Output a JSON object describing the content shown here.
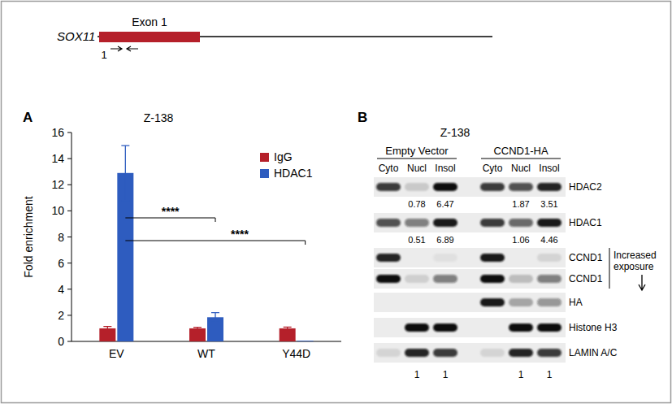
{
  "panel_labels": [
    "A",
    "B"
  ],
  "gene_diagram": {
    "gene": "SOX11",
    "exon": "Exon 1",
    "primer": "1"
  },
  "chart_data": {
    "type": "bar",
    "title": "Z-138",
    "y_label": "Fold enrichment",
    "categories": [
      "EV",
      "WT",
      "Y44D"
    ],
    "series": [
      {
        "name": "IgG",
        "color": "#b5202a",
        "values": [
          1,
          1,
          1
        ],
        "errors": [
          0.15,
          0.08,
          0.1
        ]
      },
      {
        "name": "HDAC1",
        "color": "#2e5cbf",
        "values": [
          12.9,
          1.85,
          0.05
        ],
        "errors": [
          2.1,
          0.35,
          0
        ]
      }
    ],
    "ylim": [
      0,
      16
    ],
    "yticks": [
      0,
      2,
      4,
      6,
      8,
      10,
      12,
      14,
      16
    ],
    "legend": "top-right",
    "significance": [
      {
        "from": "EV",
        "to": "WT",
        "label": "****"
      },
      {
        "from": "EV",
        "to": "Y44D",
        "label": "****"
      }
    ]
  },
  "western_blot": {
    "title": "Z-138",
    "groups": [
      {
        "name": "Empty Vector",
        "lanes": [
          "Cyto",
          "Nucl",
          "Insol"
        ]
      },
      {
        "name": "CCND1-HA",
        "lanes": [
          "Cyto",
          "Nucl",
          "Insol"
        ]
      }
    ],
    "rows": [
      {
        "label": "HDAC2",
        "bands": [
          0.8,
          0.15,
          1,
          0.8,
          0.7,
          0.9
        ],
        "quant": [
          null,
          0.78,
          6.47,
          null,
          1.87,
          3.51
        ]
      },
      {
        "label": "HDAC1",
        "bands": [
          0.7,
          0.5,
          0.95,
          0.8,
          0.6,
          0.95
        ],
        "quant": [
          null,
          0.51,
          6.89,
          null,
          1.06,
          4.46
        ]
      },
      {
        "label": "CCND1",
        "bands": [
          0.9,
          0,
          0.05,
          0.95,
          0,
          0.1
        ]
      },
      {
        "label": "CCND1",
        "bands": [
          1,
          0.12,
          0.5,
          1,
          0.2,
          0.5
        ]
      },
      {
        "label": "HA",
        "bands": [
          0,
          0,
          0,
          0.95,
          0.3,
          0.4
        ]
      },
      {
        "label": "Histone H3",
        "bands": [
          0,
          1,
          1,
          0,
          1,
          1
        ]
      },
      {
        "label": "LAMIN A/C",
        "bands": [
          0.1,
          0.9,
          0.8,
          0.1,
          0.9,
          0.8
        ]
      }
    ],
    "exposure_note": "Increased exposure",
    "footer": [
      null,
      1,
      1,
      null,
      1,
      1
    ]
  }
}
